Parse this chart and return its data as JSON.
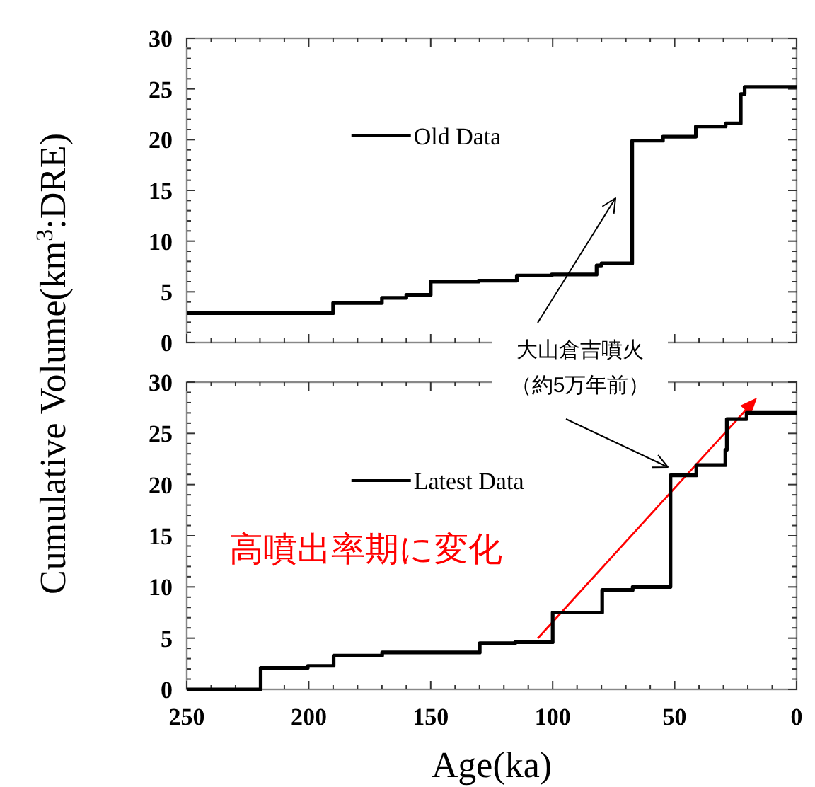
{
  "chart_data": [
    {
      "type": "step",
      "ylabel": "Cumulative Volume(km$^{3}$:DRE)",
      "xlim": [
        250,
        0
      ],
      "xticks": [
        250,
        200,
        150,
        100,
        50,
        0
      ],
      "ylim": [
        0,
        30
      ],
      "yticks": [
        0,
        5,
        10,
        15,
        20,
        25,
        30
      ],
      "tick_labels": "y",
      "grid": false,
      "legend": "top left",
      "series": [
        {
          "name": "Old Data",
          "color": "#000000",
          "x": [
            250,
            190,
            170,
            160,
            150,
            130.4,
            114.7,
            100.4,
            82,
            80,
            67.4,
            54.8,
            41.3,
            29.1,
            22.9,
            21.3,
            0
          ],
          "values": [
            2.9,
            3.9,
            4.4,
            4.7,
            6.0,
            6.1,
            6.6,
            6.7,
            7.6,
            7.8,
            19.9,
            20.3,
            21.3,
            21.6,
            24.5,
            25.2,
            25.2
          ]
        }
      ],
      "annotations": [
        "大山倉吉噴火",
        "（約5万年前）"
      ]
    },
    {
      "type": "step",
      "xlabel": "Age(ka)",
      "xlim": [
        250,
        0
      ],
      "xticks": [
        250,
        200,
        150,
        100,
        50,
        0
      ],
      "ylim": [
        0,
        30
      ],
      "yticks": [
        0,
        5,
        10,
        15,
        20,
        25,
        30
      ],
      "grid": false,
      "legend": "top left",
      "series": [
        {
          "name": "Latest Data",
          "color": "#000000",
          "x": [
            250,
            219.7,
            200.4,
            189.8,
            169.9,
            129.9,
            115.4,
            100,
            79.7,
            67.2,
            51.7,
            41.1,
            29.2,
            28.6,
            20.5,
            0
          ],
          "values": [
            0,
            2.1,
            2.3,
            3.3,
            3.6,
            4.5,
            4.6,
            7.5,
            9.7,
            10.0,
            20.9,
            21.9,
            23.4,
            26.4,
            27.0,
            27.0
          ]
        }
      ],
      "annotations": [
        "高噴出率期に変化"
      ]
    }
  ]
}
